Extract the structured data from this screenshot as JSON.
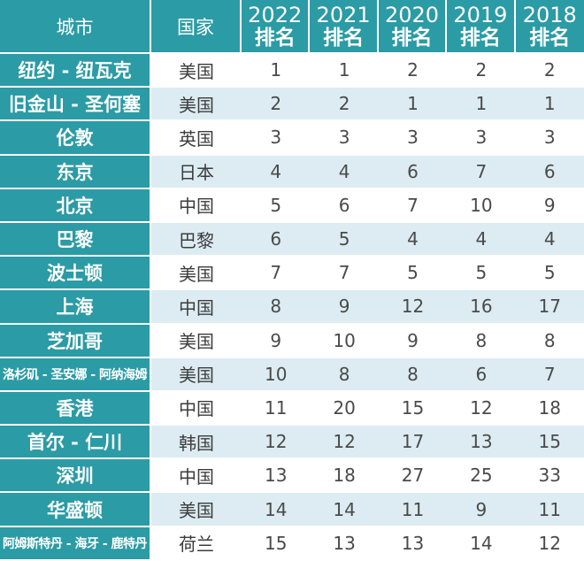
{
  "header": {
    "city": "城市",
    "country": "国家",
    "years": [
      {
        "year": "2022",
        "rank": "排名"
      },
      {
        "year": "2021",
        "rank": "排名"
      },
      {
        "year": "2020",
        "rank": "排名"
      },
      {
        "year": "2019",
        "rank": "排名"
      },
      {
        "year": "2018",
        "rank": "排名"
      }
    ]
  },
  "rows": [
    {
      "city": "纽约 - 纽瓦克",
      "country": "美国",
      "ranks": [
        "1",
        "1",
        "2",
        "2",
        "2"
      ]
    },
    {
      "city": "旧金山 - 圣何塞",
      "country": "美国",
      "ranks": [
        "2",
        "2",
        "1",
        "1",
        "1"
      ]
    },
    {
      "city": "伦敦",
      "country": "英国",
      "ranks": [
        "3",
        "3",
        "3",
        "3",
        "3"
      ]
    },
    {
      "city": "东京",
      "country": "日本",
      "ranks": [
        "4",
        "4",
        "6",
        "7",
        "6"
      ]
    },
    {
      "city": "北京",
      "country": "中国",
      "ranks": [
        "5",
        "6",
        "7",
        "10",
        "9"
      ]
    },
    {
      "city": "巴黎",
      "country": "巴黎",
      "ranks": [
        "6",
        "5",
        "4",
        "4",
        "4"
      ]
    },
    {
      "city": "波士顿",
      "country": "美国",
      "ranks": [
        "7",
        "7",
        "5",
        "5",
        "5"
      ]
    },
    {
      "city": "上海",
      "country": "中国",
      "ranks": [
        "8",
        "9",
        "12",
        "16",
        "17"
      ]
    },
    {
      "city": "芝加哥",
      "country": "美国",
      "ranks": [
        "9",
        "10",
        "9",
        "8",
        "8"
      ]
    },
    {
      "city": "洛杉矶 - 圣安娜 - 阿纳海姆",
      "country": "美国",
      "ranks": [
        "10",
        "8",
        "8",
        "6",
        "7"
      ]
    },
    {
      "city": "香港",
      "country": "中国",
      "ranks": [
        "11",
        "20",
        "15",
        "12",
        "18"
      ]
    },
    {
      "city": "首尔 - 仁川",
      "country": "韩国",
      "ranks": [
        "12",
        "12",
        "17",
        "13",
        "15"
      ]
    },
    {
      "city": "深圳",
      "country": "中国",
      "ranks": [
        "13",
        "18",
        "27",
        "25",
        "33"
      ]
    },
    {
      "city": "华盛顿",
      "country": "美国",
      "ranks": [
        "14",
        "14",
        "11",
        "9",
        "11"
      ]
    },
    {
      "city": "阿姆斯特丹 - 海牙 - 鹿特丹",
      "country": "荷兰",
      "ranks": [
        "15",
        "13",
        "13",
        "14",
        "12"
      ]
    }
  ]
}
